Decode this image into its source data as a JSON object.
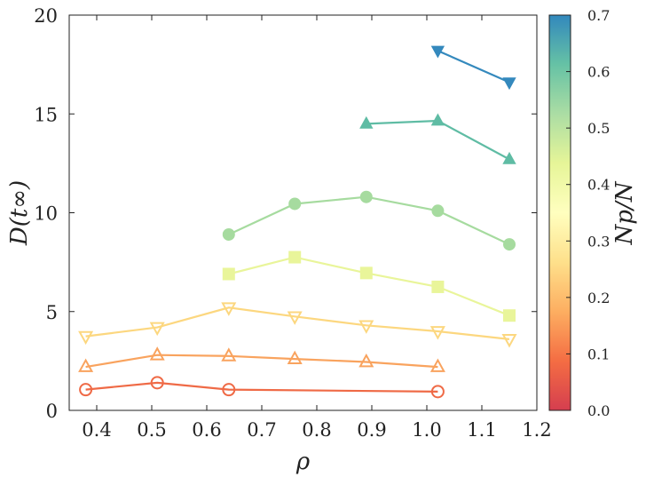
{
  "chart_data": {
    "type": "line",
    "xlabel": "ρ",
    "ylabel": "D(t∞)",
    "xlim": [
      0.35,
      1.2
    ],
    "ylim": [
      0,
      20
    ],
    "xticks": [
      "0.4",
      "0.5",
      "0.6",
      "0.7",
      "0.8",
      "0.9",
      "1.0",
      "1.1",
      "1.2"
    ],
    "yticks": [
      "0",
      "5",
      "10",
      "15",
      "20"
    ],
    "grid": false,
    "colorbar": {
      "label": "Np/N",
      "range": [
        0.0,
        0.7
      ],
      "ticks": [
        "0.0",
        "0.1",
        "0.2",
        "0.3",
        "0.4",
        "0.5",
        "0.6",
        "0.7"
      ],
      "colormap": [
        "#d53e4f",
        "#f46d43",
        "#fdae61",
        "#fee08b",
        "#ffffbf",
        "#e6f598",
        "#abdda4",
        "#66c2a5",
        "#3288bd"
      ]
    },
    "series": [
      {
        "color": "#ef6a46",
        "marker": "circle-open",
        "x": [
          0.38,
          0.51,
          0.64,
          1.02
        ],
        "y": [
          1.05,
          1.4,
          1.05,
          0.95
        ]
      },
      {
        "color": "#f9a35e",
        "marker": "triangle-up-open",
        "x": [
          0.38,
          0.51,
          0.64,
          0.76,
          0.89,
          1.02
        ],
        "y": [
          2.2,
          2.8,
          2.75,
          2.6,
          2.45,
          2.2
        ]
      },
      {
        "color": "#fcd77f",
        "marker": "triangle-down-open",
        "x": [
          0.38,
          0.51,
          0.64,
          0.76,
          0.89,
          1.02,
          1.15
        ],
        "y": [
          3.75,
          4.2,
          5.2,
          4.75,
          4.3,
          4.0,
          3.6
        ]
      },
      {
        "color": "#e9f59a",
        "marker": "square",
        "x": [
          0.64,
          0.76,
          0.89,
          1.02,
          1.15
        ],
        "y": [
          6.9,
          7.75,
          6.95,
          6.25,
          4.8
        ]
      },
      {
        "color": "#a6db9f",
        "marker": "circle",
        "x": [
          0.64,
          0.76,
          0.89,
          1.02,
          1.15
        ],
        "y": [
          8.9,
          10.45,
          10.8,
          10.1,
          8.4
        ]
      },
      {
        "color": "#5fbca4",
        "marker": "triangle-up",
        "x": [
          0.89,
          1.02,
          1.15
        ],
        "y": [
          14.5,
          14.65,
          12.7
        ]
      },
      {
        "color": "#3489bd",
        "marker": "triangle-down",
        "x": [
          1.02,
          1.15
        ],
        "y": [
          18.2,
          16.6
        ]
      }
    ]
  }
}
